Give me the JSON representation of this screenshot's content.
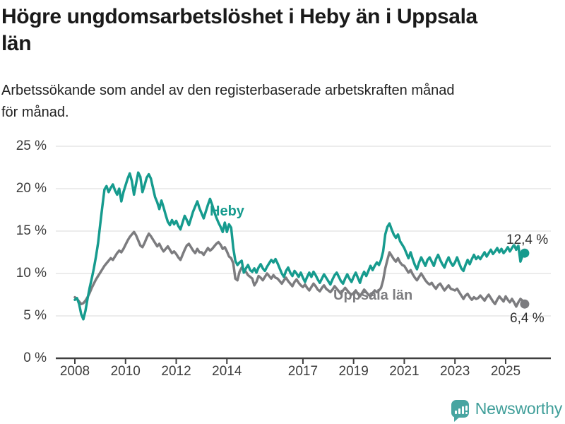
{
  "header": {
    "title": "Högre ungdomsarbetslöshet i Heby än i Uppsala\nlän",
    "subtitle": "Arbetssökande som andel av den registerbaserade arbetskraften månad\nför månad."
  },
  "chart_data": {
    "type": "line",
    "title": "Högre ungdomsarbetslöshet i Heby än i Uppsala län",
    "unit": "%",
    "frequency": "monthly",
    "x_axis": {
      "start_year": 2008,
      "start_month": 1,
      "ticks": [
        2008,
        2010,
        2012,
        2014,
        2017,
        2019,
        2021,
        2023,
        2025
      ]
    },
    "y_axis": {
      "ylim": [
        0,
        25
      ],
      "ticks": [
        {
          "label": "25 %",
          "value": 25
        },
        {
          "label": "20 %",
          "value": 20
        },
        {
          "label": "15 %",
          "value": 15
        },
        {
          "label": "10 %",
          "value": 10
        },
        {
          "label": "5 %",
          "value": 5
        },
        {
          "label": "0 %",
          "value": 0
        }
      ]
    },
    "style": {
      "grid_color": "#d8d8d8",
      "axis_color": "#3f3f3f",
      "grid": true,
      "legend_position": "inline-labels"
    },
    "series": [
      {
        "id": "heby",
        "name": "Heby",
        "color": "#169b8e",
        "end_label": "12,4 %",
        "last_value": 12.4,
        "values": [
          6.9,
          7.1,
          6.4,
          5.2,
          4.6,
          5.6,
          7.0,
          8.3,
          9.4,
          10.6,
          12.0,
          13.6,
          15.8,
          17.9,
          19.9,
          20.3,
          19.6,
          20.1,
          20.5,
          19.8,
          19.3,
          20.0,
          18.5,
          19.6,
          20.4,
          21.2,
          21.8,
          20.9,
          19.3,
          20.6,
          21.9,
          21.4,
          19.6,
          20.4,
          21.3,
          21.7,
          21.2,
          20.1,
          19.0,
          18.4,
          17.6,
          18.6,
          17.8,
          16.9,
          16.1,
          15.7,
          16.3,
          15.8,
          16.2,
          15.6,
          15.2,
          16.0,
          16.8,
          16.3,
          15.7,
          16.5,
          17.3,
          17.9,
          18.5,
          17.7,
          17.1,
          16.5,
          17.3,
          18.1,
          18.8,
          18.1,
          17.3,
          16.6,
          16.0,
          15.5,
          14.9,
          16.0,
          14.9,
          15.8,
          15.4,
          13.0,
          11.5,
          11.0,
          11.3,
          11.5,
          10.1,
          10.6,
          11.0,
          10.4,
          10.2,
          10.6,
          10.1,
          10.7,
          11.1,
          10.6,
          10.3,
          10.8,
          11.2,
          11.6,
          11.3,
          11.7,
          11.2,
          10.6,
          10.0,
          9.6,
          10.3,
          10.7,
          10.1,
          9.7,
          10.3,
          10.0,
          9.6,
          10.1,
          9.5,
          9.0,
          9.6,
          10.1,
          9.6,
          10.2,
          9.8,
          9.3,
          8.9,
          9.4,
          9.9,
          9.5,
          9.1,
          8.7,
          9.3,
          9.8,
          10.1,
          9.6,
          9.1,
          8.8,
          9.4,
          9.9,
          9.4,
          9.0,
          9.6,
          10.1,
          9.5,
          8.9,
          9.7,
          10.2,
          9.7,
          10.3,
          10.9,
          10.4,
          10.9,
          11.3,
          11.0,
          11.6,
          12.6,
          14.6,
          15.5,
          15.9,
          15.2,
          14.6,
          14.2,
          14.6,
          13.8,
          13.4,
          13.0,
          12.4,
          11.8,
          12.5,
          11.7,
          11.0,
          10.5,
          11.3,
          11.9,
          11.4,
          10.9,
          11.6,
          11.9,
          11.4,
          10.9,
          11.7,
          12.2,
          11.6,
          11.1,
          10.7,
          11.4,
          11.9,
          11.3,
          10.9,
          11.3,
          11.9,
          11.2,
          10.6,
          10.3,
          11.0,
          11.6,
          11.1,
          11.7,
          12.2,
          11.7,
          12.0,
          11.7,
          12.1,
          12.5,
          12.0,
          12.4,
          12.8,
          12.3,
          12.6,
          13.0,
          12.5,
          12.9,
          12.4,
          12.7,
          13.1,
          12.6,
          13.0,
          13.4,
          12.8,
          13.3,
          11.4,
          12.1,
          12.4
        ]
      },
      {
        "id": "uppsala",
        "name": "Uppsala län",
        "color": "#7c7c7f",
        "end_label": "6,4 %",
        "last_value": 6.4,
        "values": [
          7.2,
          7.0,
          6.7,
          6.4,
          6.5,
          6.8,
          7.2,
          7.7,
          8.3,
          8.8,
          9.3,
          9.7,
          10.1,
          10.5,
          10.9,
          11.2,
          11.5,
          11.8,
          11.6,
          12.0,
          12.4,
          12.7,
          12.5,
          12.9,
          13.4,
          13.9,
          14.3,
          14.6,
          14.9,
          14.5,
          13.9,
          13.3,
          13.1,
          13.6,
          14.2,
          14.7,
          14.4,
          14.0,
          13.6,
          13.2,
          13.5,
          13.0,
          12.6,
          12.9,
          13.2,
          12.8,
          12.4,
          12.6,
          12.3,
          11.9,
          11.6,
          12.2,
          12.8,
          13.3,
          13.5,
          13.1,
          12.7,
          12.4,
          12.9,
          12.5,
          12.5,
          12.2,
          12.6,
          13.0,
          12.7,
          12.9,
          13.2,
          13.5,
          13.7,
          13.4,
          12.9,
          13.1,
          12.6,
          12.0,
          11.8,
          11.2,
          9.4,
          9.2,
          10.2,
          10.7,
          10.5,
          10.2,
          9.8,
          9.6,
          9.4,
          8.6,
          9.0,
          9.7,
          9.5,
          9.2,
          9.6,
          10.0,
          9.7,
          9.4,
          9.8,
          9.5,
          9.4,
          9.1,
          8.8,
          9.2,
          9.5,
          9.1,
          8.8,
          8.5,
          9.0,
          9.3,
          8.9,
          8.6,
          8.4,
          8.7,
          8.3,
          8.0,
          8.4,
          8.8,
          8.5,
          8.1,
          7.9,
          8.3,
          8.6,
          8.2,
          8.0,
          7.8,
          8.1,
          8.5,
          8.2,
          7.9,
          7.6,
          8.0,
          8.3,
          8.0,
          7.7,
          7.5,
          7.7,
          8.0,
          7.6,
          7.3,
          7.7,
          8.1,
          7.8,
          7.5,
          7.3,
          7.7,
          8.0,
          7.8,
          8.0,
          8.3,
          9.2,
          10.6,
          11.6,
          12.5,
          12.1,
          11.7,
          11.4,
          11.8,
          11.3,
          11.0,
          10.9,
          10.5,
          10.1,
          10.4,
          9.9,
          9.5,
          9.2,
          9.6,
          10.0,
          9.6,
          9.2,
          8.9,
          8.7,
          8.9,
          8.5,
          8.2,
          8.6,
          8.8,
          8.4,
          8.0,
          8.3,
          8.6,
          8.2,
          8.1,
          8.0,
          8.2,
          7.8,
          7.4,
          7.0,
          7.4,
          7.6,
          7.2,
          6.9,
          7.2,
          7.0,
          7.1,
          7.4,
          7.1,
          6.8,
          7.2,
          7.5,
          7.1,
          6.7,
          6.4,
          6.9,
          7.3,
          7.0,
          6.7,
          7.3,
          6.9,
          6.6,
          7.0,
          6.6,
          6.1,
          6.6,
          7.0,
          6.8,
          6.4
        ]
      }
    ]
  },
  "footer": {
    "brand": "Newsworthy"
  }
}
